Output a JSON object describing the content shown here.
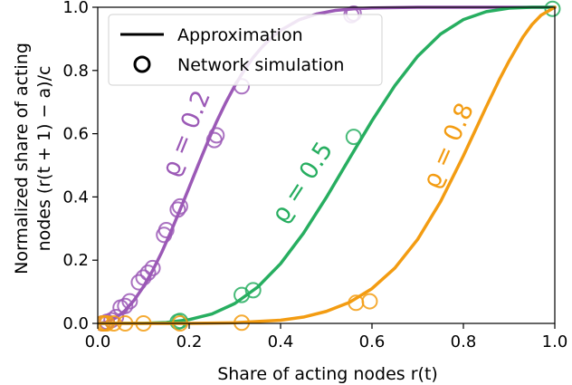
{
  "chart_data": {
    "type": "line",
    "xlabel": "Share of acting nodes r(t)",
    "ylabel_line1": "Normalized share of acting",
    "ylabel_line2": "nodes (r(t + 1) − a)/c",
    "xlim": [
      0,
      1
    ],
    "ylim": [
      0,
      1
    ],
    "x_ticks": [
      "0.0",
      "0.2",
      "0.4",
      "0.6",
      "0.8",
      "1.0"
    ],
    "y_ticks": [
      "0.0",
      "0.2",
      "0.4",
      "0.6",
      "0.8",
      "1.0"
    ],
    "grid": false,
    "legend": {
      "placement": "top-left",
      "entries": [
        {
          "label": "Approximation",
          "marker": "line"
        },
        {
          "label": "Network simulation",
          "marker": "circle"
        }
      ]
    },
    "series": [
      {
        "name": "ϱ = 0.2",
        "param": 0.2,
        "color": "#9B59B6",
        "label_text": "ϱ = 0.2",
        "approximation_x": [
          0,
          0.02,
          0.04,
          0.06,
          0.08,
          0.1,
          0.12,
          0.14,
          0.16,
          0.18,
          0.2,
          0.22,
          0.24,
          0.26,
          0.28,
          0.3,
          0.32,
          0.34,
          0.36,
          0.38,
          0.4,
          0.44,
          0.48,
          0.52,
          0.56,
          0.6,
          0.7,
          0.8,
          0.9,
          1.0
        ],
        "approximation_y": [
          0.0,
          0.004,
          0.018,
          0.041,
          0.074,
          0.116,
          0.167,
          0.225,
          0.29,
          0.359,
          0.43,
          0.502,
          0.572,
          0.638,
          0.698,
          0.752,
          0.8,
          0.841,
          0.875,
          0.904,
          0.927,
          0.96,
          0.979,
          0.99,
          0.995,
          0.998,
          1.0,
          1.0,
          1.0,
          1.0
        ],
        "simulation_x": [
          0.01,
          0.02,
          0.03,
          0.04,
          0.05,
          0.06,
          0.07,
          0.09,
          0.1,
          0.11,
          0.12,
          0.145,
          0.15,
          0.175,
          0.18,
          0.255,
          0.26,
          0.315,
          0.555,
          0.56
        ],
        "simulation_y": [
          0.0,
          0.005,
          0.01,
          0.02,
          0.05,
          0.055,
          0.07,
          0.13,
          0.145,
          0.16,
          0.175,
          0.28,
          0.295,
          0.36,
          0.37,
          0.58,
          0.595,
          0.75,
          0.975,
          0.98
        ]
      },
      {
        "name": "ϱ = 0.5",
        "param": 0.5,
        "color": "#27AE60",
        "label_text": "ϱ = 0.5",
        "approximation_x": [
          0,
          0.1,
          0.15,
          0.2,
          0.25,
          0.3,
          0.35,
          0.4,
          0.45,
          0.5,
          0.55,
          0.6,
          0.65,
          0.7,
          0.75,
          0.8,
          0.85,
          0.9,
          0.95,
          1.0
        ],
        "approximation_y": [
          0.0,
          0.0005,
          0.003,
          0.012,
          0.03,
          0.063,
          0.115,
          0.189,
          0.285,
          0.398,
          0.52,
          0.641,
          0.752,
          0.845,
          0.915,
          0.961,
          0.986,
          0.997,
          1.0,
          1.0
        ],
        "simulation_x": [
          0.175,
          0.18,
          0.315,
          0.34,
          0.56,
          0.995
        ],
        "simulation_y": [
          0.005,
          0.008,
          0.09,
          0.105,
          0.59,
          0.995
        ]
      },
      {
        "name": "ϱ = 0.8",
        "param": 0.8,
        "color": "#F39C12",
        "label_text": "ϱ = 0.8",
        "approximation_x": [
          0,
          0.2,
          0.3,
          0.4,
          0.45,
          0.5,
          0.55,
          0.6,
          0.65,
          0.7,
          0.75,
          0.8,
          0.85,
          0.88,
          0.9,
          0.93,
          0.95,
          0.97,
          1.0
        ],
        "approximation_y": [
          0.0,
          0.0,
          0.002,
          0.01,
          0.02,
          0.038,
          0.066,
          0.11,
          0.175,
          0.266,
          0.385,
          0.53,
          0.685,
          0.775,
          0.83,
          0.905,
          0.945,
          0.975,
          1.0
        ],
        "simulation_x": [
          0.01,
          0.015,
          0.02,
          0.035,
          0.06,
          0.1,
          0.18,
          0.315,
          0.565,
          0.595
        ],
        "simulation_y": [
          0.0,
          0.0,
          0.0,
          0.0,
          0.0,
          0.0,
          0.0,
          0.002,
          0.065,
          0.07
        ]
      }
    ]
  }
}
